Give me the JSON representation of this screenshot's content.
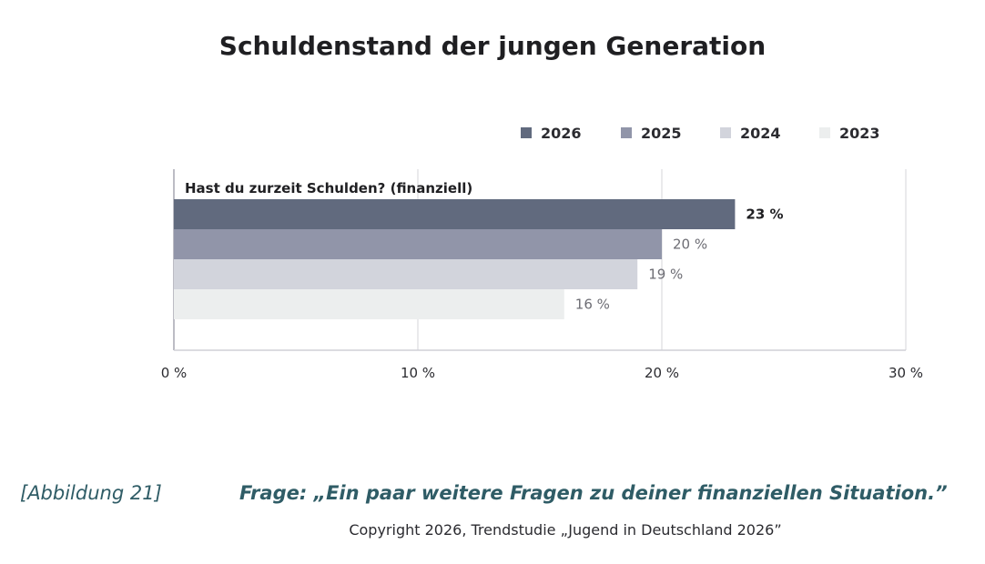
{
  "chart_data": {
    "type": "bar",
    "orientation": "horizontal",
    "title": "Schuldenstand der jungen Generation",
    "categories": [
      "Hast du zurzeit Schulden? (finanziell)"
    ],
    "series": [
      {
        "name": "2026",
        "values": [
          23
        ],
        "label": "23 %",
        "color": "#616a7e"
      },
      {
        "name": "2025",
        "values": [
          20
        ],
        "label": "20 %",
        "color": "#9195a9"
      },
      {
        "name": "2024",
        "values": [
          19
        ],
        "label": "19 %",
        "color": "#d2d4dc"
      },
      {
        "name": "2023",
        "values": [
          16
        ],
        "label": "16 %",
        "color": "#eceeee"
      }
    ],
    "xlim": [
      0,
      30
    ],
    "xticks": [
      {
        "value": 0,
        "label": "0 %"
      },
      {
        "value": 10,
        "label": "10 %"
      },
      {
        "value": 20,
        "label": "20 %"
      },
      {
        "value": 30,
        "label": "30 %"
      }
    ],
    "grid": true,
    "legend_position": "top-right"
  },
  "footer": {
    "figure_label": "[Abbildung 21]",
    "question": "Frage: „Ein paar weitere Fragen zu deiner finanziellen Situation.”",
    "copyright": "Copyright 2026, Trendstudie „Jugend in Deutschland 2026”"
  }
}
